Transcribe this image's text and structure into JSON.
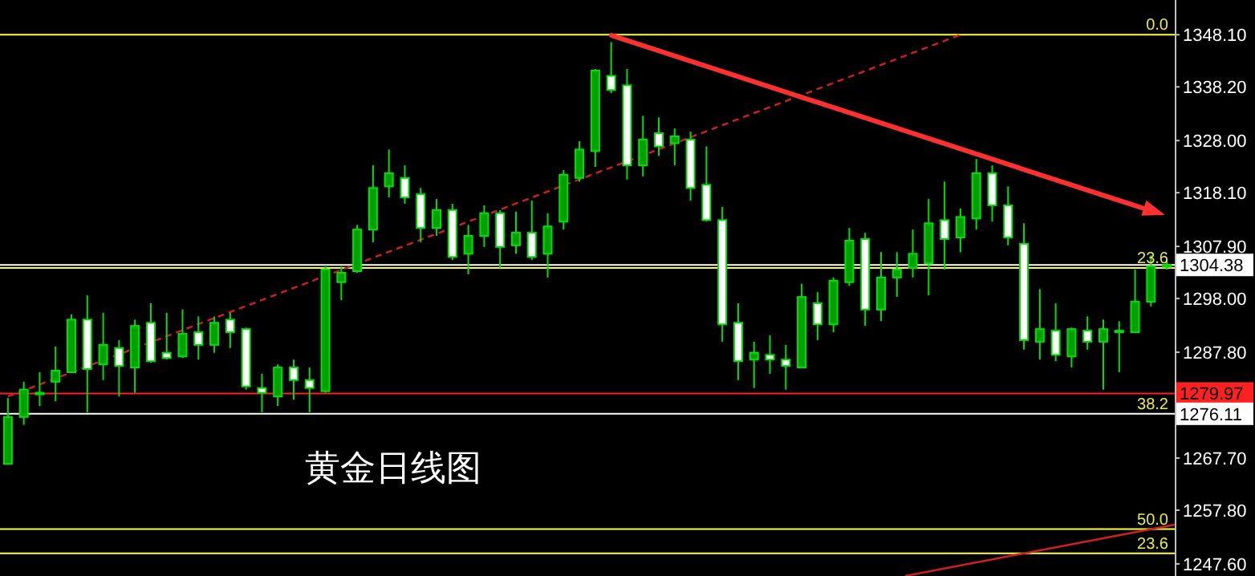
{
  "chart_data": {
    "type": "candlestick",
    "title": "黄金日线图",
    "color": "#00e000",
    "tick_labels": "y",
    "ylim": [
      1245.3,
      1354.7
    ],
    "yticks": [
      {
        "value": 1348.1,
        "label": "1348.10"
      },
      {
        "value": 1338.2,
        "label": "1338.20"
      },
      {
        "value": 1328.0,
        "label": "1328.00"
      },
      {
        "value": 1318.1,
        "label": "1318.10"
      },
      {
        "value": 1307.9,
        "label": "1307.90"
      },
      {
        "value": 1298.0,
        "label": "1298.00"
      },
      {
        "value": 1287.8,
        "label": "1287.80"
      },
      {
        "value": 1267.7,
        "label": "1267.70"
      },
      {
        "value": 1257.8,
        "label": "1257.80"
      },
      {
        "value": 1247.6,
        "label": "1247.60"
      }
    ],
    "categories": [
      null,
      null,
      null,
      null,
      null,
      null,
      null,
      null,
      null,
      null,
      null,
      null,
      null,
      null,
      null,
      null,
      null,
      null,
      null,
      null,
      null,
      null,
      null,
      null,
      null,
      null,
      null,
      null,
      null,
      null,
      null,
      null,
      null,
      null,
      null,
      null,
      null,
      null,
      null,
      null,
      null,
      null,
      null,
      null,
      null,
      null,
      null,
      null,
      null,
      null,
      null,
      null,
      null,
      null,
      null,
      null,
      null,
      null,
      null,
      null,
      null,
      null,
      null,
      null,
      null,
      null,
      null,
      null,
      null,
      null,
      null,
      null,
      null,
      null
    ],
    "ohlc": [
      [
        1266.6,
        1279.1,
        1266.6,
        1275.5
      ],
      [
        1275.5,
        1282.2,
        1274.0,
        1280.7
      ],
      [
        1280.0,
        1284.0,
        1277.6,
        1280.1
      ],
      [
        1282.2,
        1288.9,
        1278.5,
        1284.3
      ],
      [
        1284.0,
        1295.0,
        1284.0,
        1294.0
      ],
      [
        1294.0,
        1298.6,
        1276.4,
        1284.6
      ],
      [
        1285.5,
        1295.3,
        1282.5,
        1289.2
      ],
      [
        1288.6,
        1290.1,
        1279.4,
        1285.2
      ],
      [
        1284.9,
        1294.0,
        1280.1,
        1292.8
      ],
      [
        1293.4,
        1297.1,
        1285.8,
        1286.1
      ],
      [
        1287.7,
        1295.3,
        1286.4,
        1286.7
      ],
      [
        1287.0,
        1295.9,
        1286.7,
        1291.3
      ],
      [
        1291.6,
        1294.6,
        1286.4,
        1289.2
      ],
      [
        1289.2,
        1294.6,
        1287.7,
        1293.4
      ],
      [
        1294.0,
        1295.3,
        1288.6,
        1291.6
      ],
      [
        1292.2,
        1292.5,
        1280.7,
        1281.3
      ],
      [
        1281.0,
        1283.7,
        1276.4,
        1280.1
      ],
      [
        1279.4,
        1285.5,
        1277.6,
        1284.9
      ],
      [
        1284.9,
        1286.4,
        1278.8,
        1282.5
      ],
      [
        1282.5,
        1284.9,
        1276.4,
        1281.0
      ],
      [
        1280.4,
        1304.1,
        1280.1,
        1303.5
      ],
      [
        1301.1,
        1304.1,
        1297.7,
        1302.9
      ],
      [
        1303.2,
        1312.0,
        1302.9,
        1311.1
      ],
      [
        1311.1,
        1323.3,
        1308.7,
        1319.0
      ],
      [
        1319.3,
        1326.3,
        1317.2,
        1321.8
      ],
      [
        1320.9,
        1323.3,
        1316.0,
        1317.2
      ],
      [
        1317.8,
        1319.0,
        1308.7,
        1311.4
      ],
      [
        1311.4,
        1316.9,
        1309.9,
        1314.8
      ],
      [
        1314.8,
        1316.0,
        1305.3,
        1305.9
      ],
      [
        1306.5,
        1312.0,
        1302.6,
        1309.9
      ],
      [
        1309.9,
        1315.7,
        1307.8,
        1314.2
      ],
      [
        1314.2,
        1314.8,
        1303.8,
        1307.8
      ],
      [
        1308.1,
        1314.5,
        1306.5,
        1310.5
      ],
      [
        1310.5,
        1316.6,
        1305.3,
        1305.9
      ],
      [
        1306.5,
        1314.2,
        1302.0,
        1311.7
      ],
      [
        1312.6,
        1322.4,
        1311.1,
        1321.5
      ],
      [
        1320.9,
        1327.9,
        1320.2,
        1326.3
      ],
      [
        1326.0,
        1341.6,
        1323.0,
        1341.3
      ],
      [
        1340.3,
        1346.7,
        1337.0,
        1337.6
      ],
      [
        1338.5,
        1341.6,
        1320.6,
        1323.3
      ],
      [
        1323.3,
        1332.7,
        1321.2,
        1328.2
      ],
      [
        1329.4,
        1332.4,
        1325.1,
        1326.9
      ],
      [
        1327.5,
        1330.3,
        1323.3,
        1328.8
      ],
      [
        1328.2,
        1329.7,
        1316.6,
        1319.0
      ],
      [
        1319.6,
        1326.9,
        1312.6,
        1312.9
      ],
      [
        1312.9,
        1315.4,
        1289.8,
        1293.1
      ],
      [
        1293.4,
        1297.1,
        1282.5,
        1286.1
      ],
      [
        1286.4,
        1289.8,
        1281.0,
        1287.7
      ],
      [
        1287.3,
        1291.0,
        1283.7,
        1286.4
      ],
      [
        1286.4,
        1289.2,
        1280.7,
        1285.2
      ],
      [
        1284.9,
        1300.8,
        1284.9,
        1298.3
      ],
      [
        1297.1,
        1299.2,
        1290.1,
        1293.1
      ],
      [
        1293.1,
        1302.0,
        1291.6,
        1301.4
      ],
      [
        1301.1,
        1311.4,
        1300.4,
        1309.0
      ],
      [
        1309.3,
        1310.5,
        1292.8,
        1295.9
      ],
      [
        1295.9,
        1306.8,
        1293.7,
        1302.0
      ],
      [
        1302.0,
        1306.8,
        1298.3,
        1303.5
      ],
      [
        1303.8,
        1311.1,
        1302.0,
        1306.5
      ],
      [
        1304.7,
        1316.9,
        1298.6,
        1312.3
      ],
      [
        1312.9,
        1320.2,
        1303.5,
        1309.3
      ],
      [
        1309.6,
        1315.1,
        1306.8,
        1313.5
      ],
      [
        1313.2,
        1324.5,
        1311.1,
        1321.8
      ],
      [
        1321.8,
        1323.3,
        1312.6,
        1315.7
      ],
      [
        1315.7,
        1319.3,
        1308.1,
        1309.6
      ],
      [
        1308.4,
        1312.3,
        1288.3,
        1290.1
      ],
      [
        1289.8,
        1299.8,
        1286.4,
        1292.2
      ],
      [
        1291.9,
        1297.1,
        1286.1,
        1287.3
      ],
      [
        1287.0,
        1292.5,
        1284.9,
        1292.2
      ],
      [
        1291.9,
        1294.6,
        1288.3,
        1289.8
      ],
      [
        1289.8,
        1294.0,
        1280.7,
        1292.2
      ],
      [
        1291.6,
        1293.7,
        1284.0,
        1291.9
      ],
      [
        1291.6,
        1303.5,
        1291.6,
        1297.4
      ],
      [
        1297.4,
        1306.2,
        1296.5,
        1304.1
      ],
      [
        1304.0,
        1305.3,
        1303.5,
        1304.38
      ]
    ],
    "series": [
      {
        "type": "line",
        "color": "#d02020",
        "line_style": "dashed",
        "marker": "none",
        "values": [
          1279.4,
          null,
          null,
          null,
          null,
          null,
          null,
          null,
          null,
          null,
          null,
          null,
          null,
          null,
          null,
          null,
          null,
          null,
          null,
          null,
          null,
          null,
          null,
          null,
          null,
          null,
          null,
          null,
          null,
          null,
          null,
          null,
          null,
          null,
          null,
          null,
          null,
          null,
          null,
          null,
          null,
          null,
          null,
          null,
          null,
          null,
          null,
          null,
          null,
          null,
          null,
          null,
          null,
          null,
          null,
          null,
          null,
          null,
          null,
          null,
          1348.1,
          null,
          null,
          null,
          null,
          null,
          null,
          null,
          null,
          null,
          null,
          null,
          null,
          null
        ]
      }
    ],
    "ref_lines": [
      {
        "axis": "y",
        "value": 1348.1,
        "color": "#ffff40"
      },
      {
        "axis": "y",
        "value": 1304.38,
        "label": "1304.38",
        "color": "#ffffff"
      },
      {
        "axis": "y",
        "value": 1303.8,
        "color": "#ffff40"
      },
      {
        "axis": "y",
        "value": 1279.97,
        "label": "1279.97",
        "color": "#ff2020"
      },
      {
        "axis": "y",
        "value": 1276.11,
        "label": "1276.11",
        "color": "#ffffff"
      },
      {
        "axis": "y",
        "value": 1254.2,
        "color": "#ffff40"
      },
      {
        "axis": "y",
        "value": 1249.6,
        "color": "#ffff40"
      }
    ],
    "annotations": [
      {
        "text": "0.0",
        "y": 1348.1
      },
      {
        "text": "23.6",
        "y": 1303.8
      },
      {
        "text": "38.2",
        "y": 1276.11
      },
      {
        "text": "50.0",
        "y": 1254.2
      },
      {
        "text": "23.6",
        "y": 1249.6
      }
    ]
  }
}
